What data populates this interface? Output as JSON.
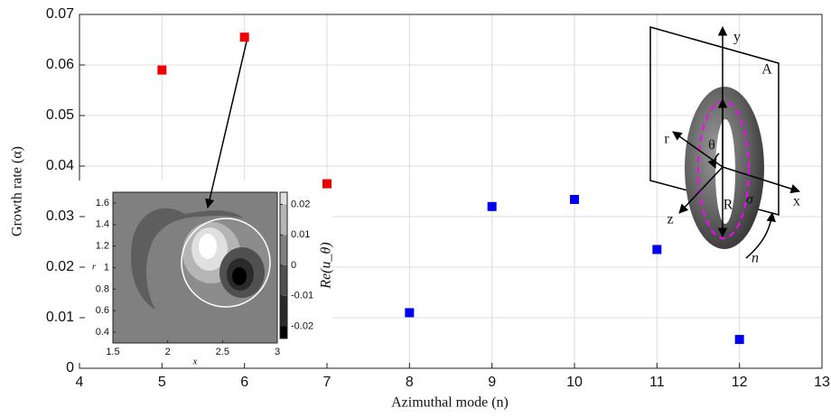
{
  "chart_data": [
    {
      "type": "scatter",
      "xlabel": "Azimuthal mode (n)",
      "ylabel": "Growth rate (α)",
      "series": [
        {
          "color": "#ee0000",
          "x": [
            5,
            6,
            7
          ],
          "values": [
            0.059,
            0.0655,
            0.0365
          ]
        },
        {
          "color": "#0000ee",
          "x": [
            8,
            9,
            10,
            11,
            12
          ],
          "values": [
            0.011,
            0.032,
            0.0334,
            0.0235,
            0.0057
          ]
        }
      ],
      "xlim": [
        4,
        13
      ],
      "xticks": [
        4,
        5,
        6,
        7,
        8,
        9,
        10,
        11,
        12,
        13
      ],
      "ylim": [
        0,
        0.07
      ],
      "yticks": [
        0,
        0.01,
        0.02,
        0.03,
        0.04,
        0.05,
        0.06,
        0.07
      ],
      "grid": true
    },
    {
      "type": "contour",
      "xlabel": "x",
      "ylabel": "r",
      "colorbar_label": "Re(u_θ)",
      "xlim": [
        1.5,
        3
      ],
      "xticks": [
        1.5,
        2,
        2.5,
        3
      ],
      "ylim": [
        0.3,
        1.7
      ],
      "yticks": [
        0.4,
        0.6,
        0.8,
        1,
        1.2,
        1.4,
        1.6
      ],
      "clim": [
        -0.024,
        0.024
      ],
      "cticks": [
        -0.02,
        -0.01,
        0,
        0.01,
        0.02
      ]
    }
  ],
  "diagram": {
    "labels": [
      "y",
      "A",
      "r",
      "θ",
      "x",
      "z",
      "R",
      "σ",
      "n"
    ]
  }
}
